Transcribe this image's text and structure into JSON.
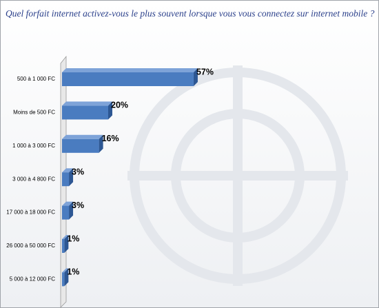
{
  "chart_data": {
    "type": "bar",
    "orientation": "horizontal",
    "title": "Quel forfait internet  activez-vous le plus souvent lorsque  vous vous connectez sur internet mobile  ?",
    "categories": [
      "500 à 1 000 FC",
      "Moins de 500 FC",
      "1 000 à 3 000 FC",
      "3 000 à 4 800 FC",
      "17 000 à 18 000 FC",
      "26 000 à 50 000 FC",
      "5 000 à 12 000 FC"
    ],
    "values": [
      57,
      20,
      16,
      3,
      3,
      1,
      1
    ],
    "value_labels": [
      "57%",
      "20%",
      "16%",
      "3%",
      "3%",
      "1%",
      "1%"
    ],
    "color": "#4a7cc0"
  }
}
